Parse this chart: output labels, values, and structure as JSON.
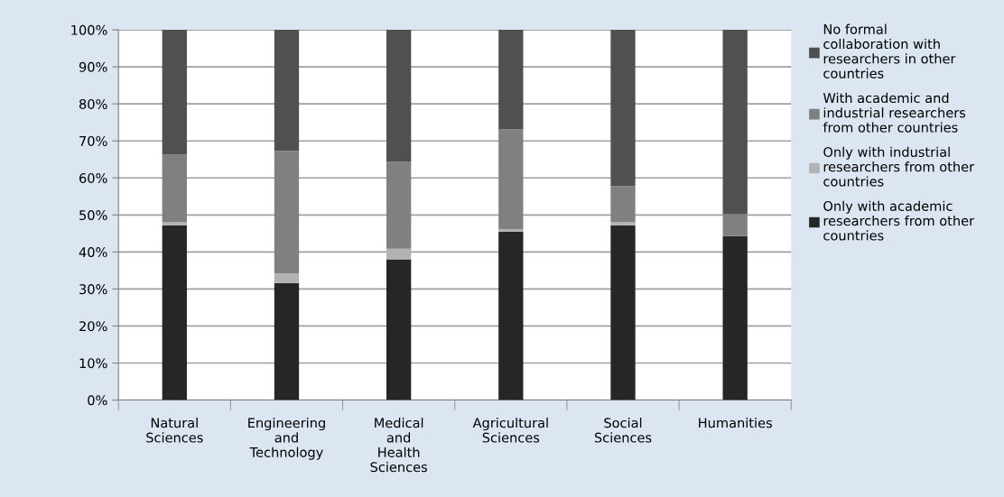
{
  "chart_data": {
    "type": "bar",
    "stacked": true,
    "categories": [
      "Natural Sciences",
      "Engineering and Technology",
      "Medical and Health Sciences",
      "Agricultural Sciences",
      "Social Sciences",
      "Humanities"
    ],
    "series": [
      {
        "name": "Only with academic researchers from other countries",
        "color": "#262626",
        "values": [
          47.2,
          31.6,
          38.0,
          45.5,
          47.2,
          44.3
        ]
      },
      {
        "name": "Only with industrial researchers from other countries",
        "color": "#b2b2b2",
        "values": [
          0.9,
          2.6,
          2.9,
          0.6,
          0.9,
          0
        ]
      },
      {
        "name": "With academic and industrial researchers from other countries",
        "color": "#808080",
        "values": [
          18.2,
          33.1,
          23.4,
          27.0,
          9.7,
          5.9
        ]
      },
      {
        "name": "No formal collaboration with researchers in other countries",
        "color": "#505050",
        "values": [
          33.7,
          32.7,
          35.7,
          26.9,
          42.2,
          49.8
        ]
      }
    ],
    "ylim": [
      0,
      100
    ],
    "yticks": [
      {
        "value": 0,
        "label": "0%"
      },
      {
        "value": 10,
        "label": "10%"
      },
      {
        "value": 20,
        "label": "20%"
      },
      {
        "value": 30,
        "label": "30%"
      },
      {
        "value": 40,
        "label": "40%"
      },
      {
        "value": 50,
        "label": "50%"
      },
      {
        "value": 60,
        "label": "60%"
      },
      {
        "value": 70,
        "label": "70%"
      },
      {
        "value": 80,
        "label": "80%"
      },
      {
        "value": 90,
        "label": "90%"
      },
      {
        "value": 100,
        "label": "100%"
      }
    ],
    "grid": "y",
    "legend": "right"
  }
}
